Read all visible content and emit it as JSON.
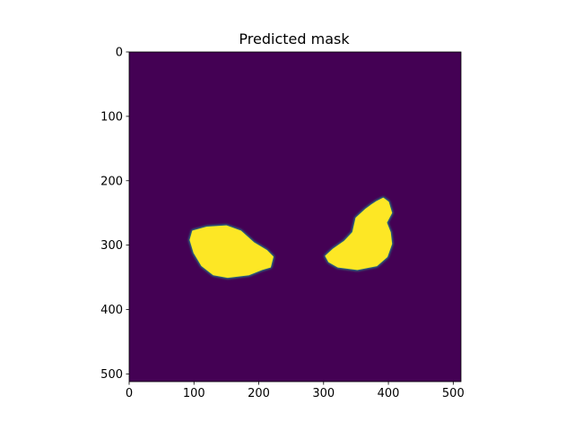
{
  "chart_data": {
    "type": "heatmap",
    "title": "Predicted mask",
    "xlabel": "",
    "ylabel": "",
    "image_shape": [
      512,
      512
    ],
    "xlim": [
      0,
      512
    ],
    "ylim": [
      512,
      0
    ],
    "xticks": [
      0,
      100,
      200,
      300,
      400,
      500
    ],
    "yticks": [
      0,
      100,
      200,
      300,
      400,
      500
    ],
    "colormap": "viridis",
    "value_range": [
      0,
      1
    ],
    "colors": {
      "background": "#440154",
      "mask": "#fde725",
      "edge": "#21918c"
    },
    "regions": [
      {
        "value": 1,
        "outline": [
          [
            98,
            278
          ],
          [
            120,
            272
          ],
          [
            150,
            270
          ],
          [
            172,
            278
          ],
          [
            192,
            296
          ],
          [
            212,
            308
          ],
          [
            222,
            318
          ],
          [
            218,
            334
          ],
          [
            205,
            338
          ],
          [
            185,
            346
          ],
          [
            152,
            350
          ],
          [
            130,
            346
          ],
          [
            112,
            332
          ],
          [
            100,
            312
          ],
          [
            94,
            292
          ]
        ]
      },
      {
        "value": 1,
        "outline": [
          [
            382,
            232
          ],
          [
            392,
            227
          ],
          [
            400,
            233
          ],
          [
            405,
            250
          ],
          [
            397,
            265
          ],
          [
            403,
            280
          ],
          [
            405,
            298
          ],
          [
            398,
            318
          ],
          [
            382,
            332
          ],
          [
            352,
            338
          ],
          [
            322,
            334
          ],
          [
            308,
            326
          ],
          [
            303,
            317
          ],
          [
            315,
            306
          ],
          [
            332,
            294
          ],
          [
            345,
            280
          ],
          [
            350,
            258
          ],
          [
            365,
            244
          ],
          [
            373,
            238
          ]
        ]
      }
    ]
  }
}
